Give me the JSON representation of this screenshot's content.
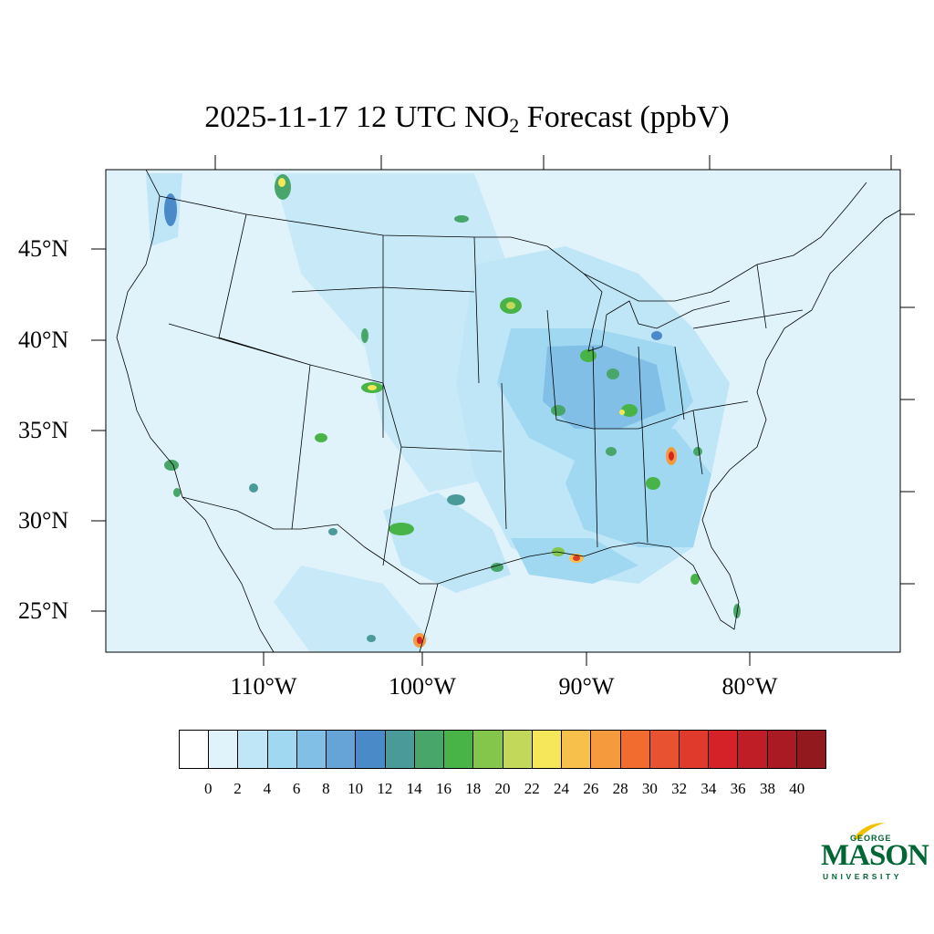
{
  "title": {
    "prefix": "2025-11-17 12 UTC NO",
    "subscript": "2",
    "suffix": " Forecast (ppbV)"
  },
  "map": {
    "background_color": "#e0f3fb",
    "lat_labels": [
      "45°N",
      "40°N",
      "35°N",
      "30°N",
      "25°N"
    ],
    "lon_labels": [
      "110°W",
      "100°W",
      "90°W",
      "80°W"
    ]
  },
  "colorbar": {
    "colors": [
      "#ffffff",
      "#e0f3fb",
      "#bfe6f7",
      "#a0d8f2",
      "#82bfe6",
      "#66a4d8",
      "#4a8ac8",
      "#4a9a9a",
      "#48a66a",
      "#48b448",
      "#84c64c",
      "#c2d85a",
      "#f6e65a",
      "#f6c04a",
      "#f69a3e",
      "#f26c30",
      "#e85230",
      "#e03a2c",
      "#d42228",
      "#c01e26",
      "#aa1a22",
      "#921a1e"
    ],
    "tick_labels": [
      "0",
      "2",
      "4",
      "6",
      "8",
      "10",
      "12",
      "14",
      "16",
      "18",
      "20",
      "22",
      "24",
      "26",
      "28",
      "30",
      "32",
      "34",
      "36",
      "38",
      "40"
    ]
  },
  "logo": {
    "line1": "GEORGE",
    "line2": "MASON",
    "line3": "UNIVERSITY",
    "color": "#006633",
    "accent": "#f2c200"
  }
}
